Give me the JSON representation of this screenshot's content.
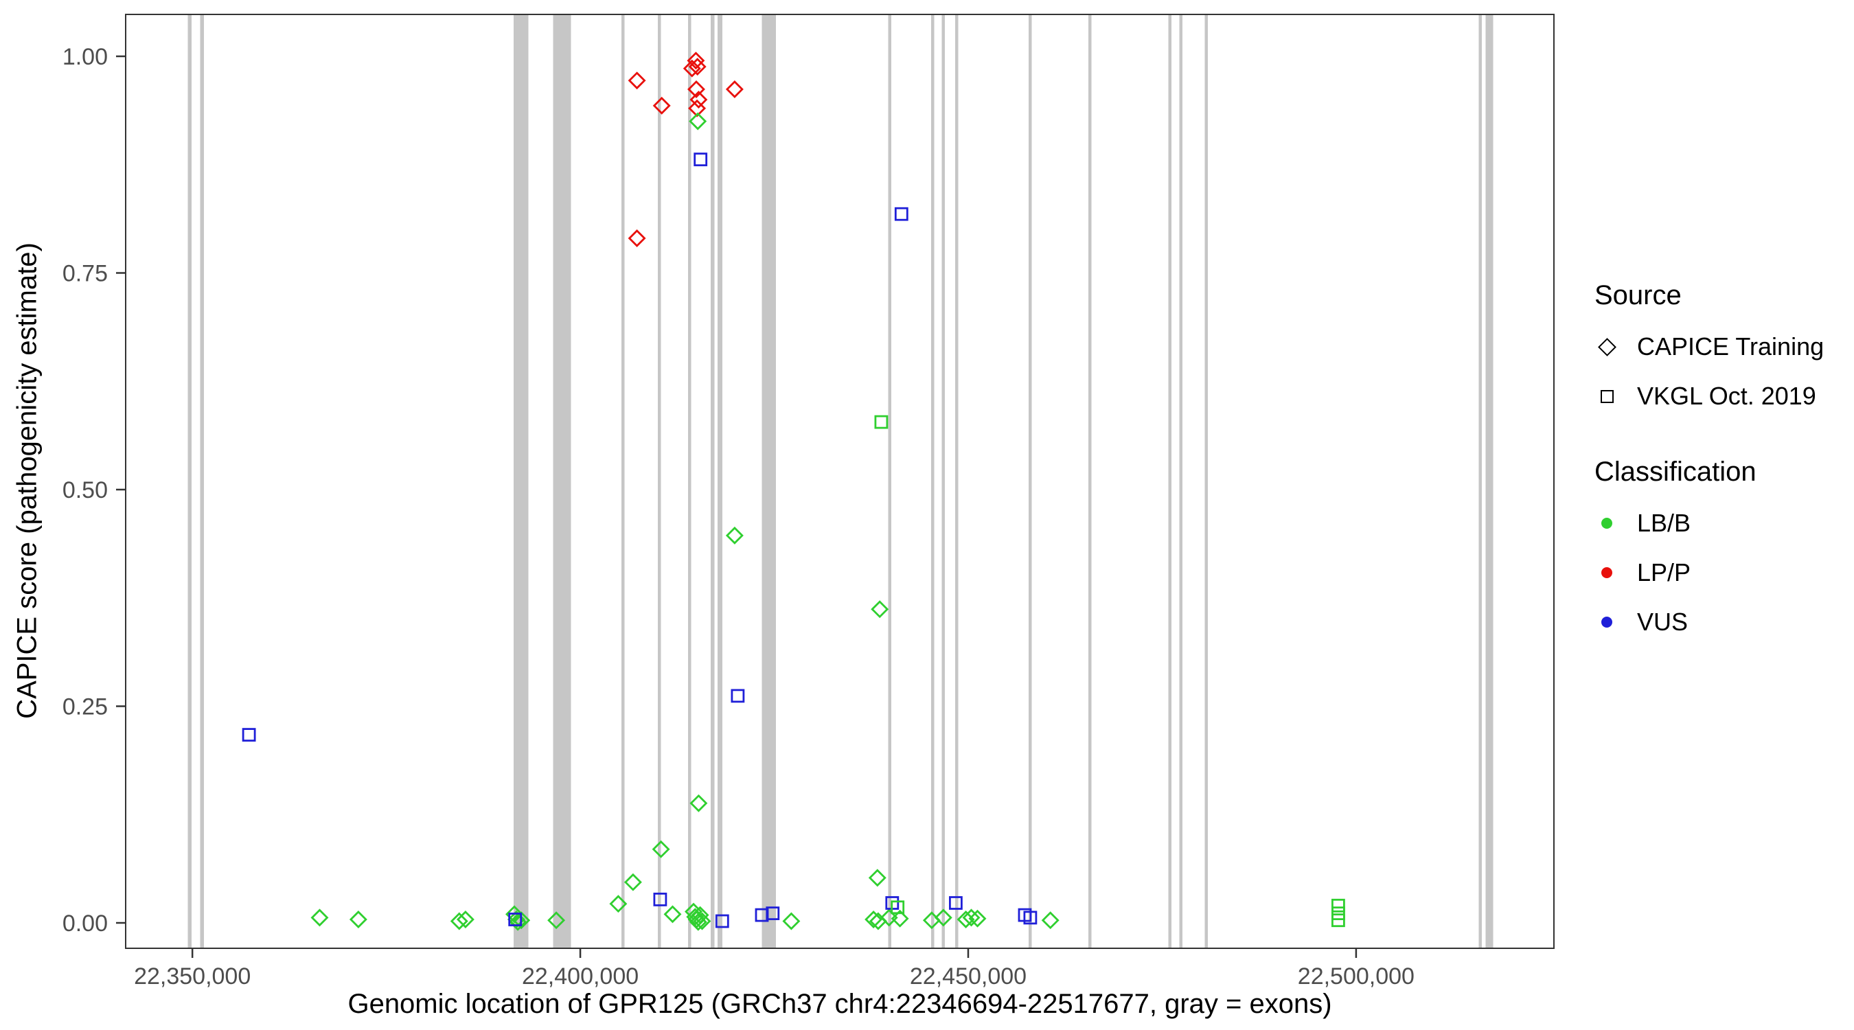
{
  "legend": {
    "source": {
      "title": "Source",
      "items": [
        {
          "label": "CAPICE Training",
          "shape": "diamond"
        },
        {
          "label": "VKGL Oct. 2019",
          "shape": "square"
        }
      ]
    },
    "classification": {
      "title": "Classification",
      "items": [
        {
          "label": "LB/B",
          "color": "#2fcf2f"
        },
        {
          "label": "LP/P",
          "color": "#e8100c"
        },
        {
          "label": "VUS",
          "color": "#1f1fd8"
        }
      ]
    }
  },
  "chart_data": {
    "type": "scatter",
    "title": "",
    "xlabel": "Genomic location of GPR125 (GRCh37 chr4:22346694-22517677, gray = exons)",
    "ylabel": "CAPICE score (pathogenicity estimate)",
    "xlim": [
      22341400,
      22525500
    ],
    "ylim": [
      0,
      1
    ],
    "xticks": [
      22350000,
      22400000,
      22450000,
      22500000
    ],
    "xtick_labels": [
      "22,350,000",
      "22,400,000",
      "22,450,000",
      "22,500,000"
    ],
    "yticks": [
      0,
      0.25,
      0.5,
      0.75,
      1.0
    ],
    "ytick_labels": [
      "0.00",
      "0.25",
      "0.50",
      "0.75",
      "1.00"
    ],
    "grid": "off",
    "legend_position": "right",
    "exon_color": "#c6c6c6",
    "class_colors": {
      "LB/B": "#2fcf2f",
      "LP/P": "#e8100c",
      "VUS": "#1f1fd8"
    },
    "shapes": {
      "CAPICE Training": "diamond",
      "VKGL Oct. 2019": "square"
    },
    "exons": [
      [
        22349400,
        22349900
      ],
      [
        22351000,
        22351500
      ],
      [
        22391400,
        22393300
      ],
      [
        22396500,
        22398800
      ],
      [
        22405300,
        22405700
      ],
      [
        22410000,
        22410400
      ],
      [
        22413900,
        22414300
      ],
      [
        22416800,
        22417300
      ],
      [
        22417700,
        22418300
      ],
      [
        22423400,
        22425200
      ],
      [
        22439700,
        22440100
      ],
      [
        22445200,
        22445600
      ],
      [
        22446600,
        22447000
      ],
      [
        22448300,
        22448700
      ],
      [
        22457800,
        22458200
      ],
      [
        22465500,
        22465900
      ],
      [
        22475800,
        22476200
      ],
      [
        22477200,
        22477600
      ],
      [
        22480500,
        22480900
      ],
      [
        22515800,
        22516200
      ],
      [
        22516700,
        22517677
      ]
    ],
    "point_format": [
      "x",
      "y",
      "source",
      "classification"
    ],
    "points": [
      [
        22407300,
        0.972,
        "CAPICE Training",
        "LP/P"
      ],
      [
        22407300,
        0.79,
        "CAPICE Training",
        "LP/P"
      ],
      [
        22410500,
        0.943,
        "CAPICE Training",
        "LP/P"
      ],
      [
        22414400,
        0.986,
        "CAPICE Training",
        "LP/P"
      ],
      [
        22414900,
        0.995,
        "CAPICE Training",
        "LP/P"
      ],
      [
        22415100,
        0.988,
        "CAPICE Training",
        "LP/P"
      ],
      [
        22414950,
        0.962,
        "CAPICE Training",
        "LP/P"
      ],
      [
        22415250,
        0.95,
        "CAPICE Training",
        "LP/P"
      ],
      [
        22415050,
        0.94,
        "CAPICE Training",
        "LP/P"
      ],
      [
        22419900,
        0.962,
        "CAPICE Training",
        "LP/P"
      ],
      [
        22415150,
        0.925,
        "CAPICE Training",
        "LB/B"
      ],
      [
        22419900,
        0.447,
        "CAPICE Training",
        "LB/B"
      ],
      [
        22438600,
        0.362,
        "CAPICE Training",
        "LB/B"
      ],
      [
        22415250,
        0.138,
        "CAPICE Training",
        "LB/B"
      ],
      [
        22410400,
        0.085,
        "CAPICE Training",
        "LB/B"
      ],
      [
        22438300,
        0.052,
        "CAPICE Training",
        "LB/B"
      ],
      [
        22406800,
        0.047,
        "CAPICE Training",
        "LB/B"
      ],
      [
        22404900,
        0.022,
        "CAPICE Training",
        "LB/B"
      ],
      [
        22366400,
        0.006,
        "CAPICE Training",
        "LB/B"
      ],
      [
        22371400,
        0.004,
        "CAPICE Training",
        "LB/B"
      ],
      [
        22384400,
        0.002,
        "CAPICE Training",
        "LB/B"
      ],
      [
        22385200,
        0.004,
        "CAPICE Training",
        "LB/B"
      ],
      [
        22391500,
        0.01,
        "CAPICE Training",
        "LB/B"
      ],
      [
        22391750,
        0.004,
        "CAPICE Training",
        "LB/B"
      ],
      [
        22391950,
        0.001,
        "CAPICE Training",
        "LB/B"
      ],
      [
        22392400,
        0.003,
        "CAPICE Training",
        "LB/B"
      ],
      [
        22396900,
        0.003,
        "CAPICE Training",
        "LB/B"
      ],
      [
        22411900,
        0.01,
        "CAPICE Training",
        "LB/B"
      ],
      [
        22414600,
        0.013,
        "CAPICE Training",
        "LB/B"
      ],
      [
        22414800,
        0.007,
        "CAPICE Training",
        "LB/B"
      ],
      [
        22415000,
        0.004,
        "CAPICE Training",
        "LB/B"
      ],
      [
        22415200,
        0.001,
        "CAPICE Training",
        "LB/B"
      ],
      [
        22415450,
        0.009,
        "CAPICE Training",
        "LB/B"
      ],
      [
        22415700,
        0.002,
        "CAPICE Training",
        "LB/B"
      ],
      [
        22427200,
        0.002,
        "CAPICE Training",
        "LB/B"
      ],
      [
        22437800,
        0.004,
        "CAPICE Training",
        "LB/B"
      ],
      [
        22438400,
        0.002,
        "CAPICE Training",
        "LB/B"
      ],
      [
        22439800,
        0.006,
        "CAPICE Training",
        "LB/B"
      ],
      [
        22441200,
        0.005,
        "CAPICE Training",
        "LB/B"
      ],
      [
        22445300,
        0.003,
        "CAPICE Training",
        "LB/B"
      ],
      [
        22446800,
        0.006,
        "CAPICE Training",
        "LB/B"
      ],
      [
        22449700,
        0.004,
        "CAPICE Training",
        "LB/B"
      ],
      [
        22450400,
        0.006,
        "CAPICE Training",
        "LB/B"
      ],
      [
        22451200,
        0.005,
        "CAPICE Training",
        "LB/B"
      ],
      [
        22460600,
        0.003,
        "CAPICE Training",
        "LB/B"
      ],
      [
        22415500,
        0.881,
        "VKGL Oct. 2019",
        "VUS"
      ],
      [
        22441400,
        0.818,
        "VKGL Oct. 2019",
        "VUS"
      ],
      [
        22420300,
        0.262,
        "VKGL Oct. 2019",
        "VUS"
      ],
      [
        22357300,
        0.217,
        "VKGL Oct. 2019",
        "VUS"
      ],
      [
        22391600,
        0.004,
        "VKGL Oct. 2019",
        "VUS"
      ],
      [
        22410300,
        0.027,
        "VKGL Oct. 2019",
        "VUS"
      ],
      [
        22418300,
        0.002,
        "VKGL Oct. 2019",
        "VUS"
      ],
      [
        22423400,
        0.009,
        "VKGL Oct. 2019",
        "VUS"
      ],
      [
        22424800,
        0.011,
        "VKGL Oct. 2019",
        "VUS"
      ],
      [
        22440200,
        0.023,
        "VKGL Oct. 2019",
        "VUS"
      ],
      [
        22448400,
        0.023,
        "VKGL Oct. 2019",
        "VUS"
      ],
      [
        22457300,
        0.009,
        "VKGL Oct. 2019",
        "VUS"
      ],
      [
        22458000,
        0.006,
        "VKGL Oct. 2019",
        "VUS"
      ],
      [
        22438800,
        0.578,
        "VKGL Oct. 2019",
        "LB/B"
      ],
      [
        22440900,
        0.018,
        "VKGL Oct. 2019",
        "LB/B"
      ],
      [
        22497700,
        0.02,
        "VKGL Oct. 2019",
        "LB/B"
      ],
      [
        22497700,
        0.011,
        "VKGL Oct. 2019",
        "LB/B"
      ],
      [
        22497700,
        0.003,
        "VKGL Oct. 2019",
        "LB/B"
      ]
    ]
  }
}
